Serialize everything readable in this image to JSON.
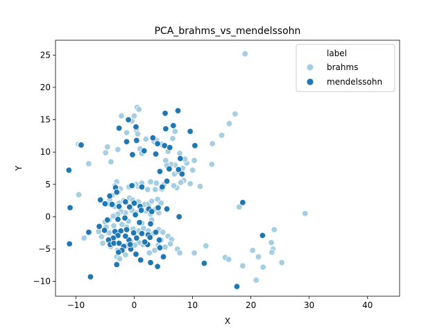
{
  "chart_data": {
    "type": "scatter",
    "title": "PCA_brahms_vs_mendelssohn",
    "xlabel": "X",
    "ylabel": "Y",
    "xlim": [
      -13.5,
      45.5
    ],
    "ylim": [
      -12.3,
      27.3
    ],
    "xticks": [
      -10,
      0,
      10,
      20,
      30,
      40
    ],
    "yticks": [
      -10,
      -5,
      0,
      5,
      10,
      15,
      20,
      25
    ],
    "grid": false,
    "legend": {
      "title": "label",
      "placement": "top-right"
    },
    "series": [
      {
        "name": "brahms",
        "color": "#a6cee3",
        "points": [
          [
            19.0,
            25.2
          ],
          [
            17.3,
            15.9
          ],
          [
            16.3,
            14.4
          ],
          [
            15.0,
            12.6
          ],
          [
            13.4,
            11.3
          ],
          [
            13.3,
            8.1
          ],
          [
            29.3,
            0.5
          ],
          [
            18.0,
            1.5
          ],
          [
            24.0,
            -2.0
          ],
          [
            23.5,
            -4.0
          ],
          [
            23.8,
            -5.0
          ],
          [
            23.6,
            -5.5
          ],
          [
            25.3,
            -7.1
          ],
          [
            21.3,
            -6.2
          ],
          [
            20.3,
            -5.2
          ],
          [
            22.1,
            -7.8
          ],
          [
            18.6,
            -7.6
          ],
          [
            20.9,
            -9.8
          ],
          [
            15.6,
            -6.3
          ],
          [
            16.2,
            -6.6
          ],
          [
            12.3,
            -4.5
          ],
          [
            10.3,
            -5.6
          ],
          [
            11.3,
            4.7
          ],
          [
            10.3,
            8.7
          ],
          [
            10.0,
            7.2
          ],
          [
            9.6,
            5.1
          ],
          [
            9.0,
            8.3
          ],
          [
            8.7,
            8.9
          ],
          [
            7.8,
            9.8
          ],
          [
            7.0,
            13.2
          ],
          [
            7.0,
            8.0
          ],
          [
            6.3,
            8.1
          ],
          [
            5.4,
            8.7
          ],
          [
            5.6,
            7.9
          ],
          [
            6.9,
            6.6
          ],
          [
            7.5,
            7.0
          ],
          [
            8.3,
            7.5
          ],
          [
            7.3,
            4.5
          ],
          [
            6.8,
            4.8
          ],
          [
            8.5,
            5.6
          ],
          [
            8.0,
            5.3
          ],
          [
            5.1,
            5.0
          ],
          [
            4.7,
            4.3
          ],
          [
            3.8,
            5.2
          ],
          [
            3.6,
            4.2
          ],
          [
            2.8,
            5.4
          ],
          [
            2.3,
            4.2
          ],
          [
            1.3,
            5.2
          ],
          [
            0.6,
            4.7
          ],
          [
            0.3,
            5.0
          ],
          [
            -0.2,
            4.9
          ],
          [
            -0.9,
            4.6
          ],
          [
            -2.4,
            4.3
          ],
          [
            -3.0,
            5.4
          ],
          [
            -3.3,
            4.8
          ],
          [
            -3.1,
            4.3
          ],
          [
            -2.8,
            3.8
          ],
          [
            -3.8,
            3.3
          ],
          [
            -4.2,
            2.6
          ],
          [
            -4.6,
            2.0
          ],
          [
            -3.3,
            1.6
          ],
          [
            -2.6,
            2.1
          ],
          [
            -1.8,
            2.5
          ],
          [
            -0.8,
            2.9
          ],
          [
            -0.3,
            2.6
          ],
          [
            0.7,
            2.3
          ],
          [
            1.8,
            1.9
          ],
          [
            2.5,
            2.0
          ],
          [
            3.0,
            2.4
          ],
          [
            4.0,
            2.7
          ],
          [
            4.6,
            2.1
          ],
          [
            4.2,
            0.6
          ],
          [
            3.7,
            1.2
          ],
          [
            2.8,
            0.4
          ],
          [
            2.0,
            0.9
          ],
          [
            1.3,
            1.1
          ],
          [
            0.3,
            0.6
          ],
          [
            -0.4,
            1.0
          ],
          [
            -1.5,
            0.6
          ],
          [
            -2.3,
            0.8
          ],
          [
            -2.8,
            0.4
          ],
          [
            -3.6,
            0.1
          ],
          [
            -4.3,
            -0.5
          ],
          [
            -5.0,
            -0.8
          ],
          [
            -4.8,
            -1.6
          ],
          [
            -3.5,
            -1.4
          ],
          [
            -2.1,
            -1.2
          ],
          [
            -1.3,
            -1.6
          ],
          [
            -0.2,
            -1.9
          ],
          [
            0.8,
            -2.2
          ],
          [
            1.6,
            -1.8
          ],
          [
            2.4,
            -2.2
          ],
          [
            3.3,
            -2.6
          ],
          [
            4.2,
            -2.0
          ],
          [
            4.9,
            -2.4
          ],
          [
            5.8,
            -3.0
          ],
          [
            6.4,
            -3.5
          ],
          [
            6.2,
            -4.2
          ],
          [
            7.4,
            -5.0
          ],
          [
            7.8,
            -5.6
          ],
          [
            5.3,
            -4.7
          ],
          [
            4.6,
            -3.6
          ],
          [
            4.1,
            -4.4
          ],
          [
            3.5,
            -5.2
          ],
          [
            2.6,
            -5.6
          ],
          [
            1.5,
            -4.3
          ],
          [
            0.8,
            -4.0
          ],
          [
            0.1,
            -4.4
          ],
          [
            -0.6,
            -3.8
          ],
          [
            -1.3,
            -4.5
          ],
          [
            -2.0,
            -5.0
          ],
          [
            -2.9,
            -5.2
          ],
          [
            -2.8,
            -5.5
          ],
          [
            -3.0,
            -6.2
          ],
          [
            -2.5,
            -6.5
          ],
          [
            -1.5,
            -5.9
          ],
          [
            -4.0,
            -4.6
          ],
          [
            -5.4,
            -4.1
          ],
          [
            -5.6,
            -3.1
          ],
          [
            -4.3,
            -2.5
          ],
          [
            -6.1,
            -2.3
          ],
          [
            -8.6,
            -3.3
          ],
          [
            -9.5,
            3.4
          ],
          [
            -9.6,
            11.2
          ],
          [
            -9.3,
            11.1
          ],
          [
            -7.8,
            8.2
          ],
          [
            -4.9,
            9.9
          ],
          [
            -4.6,
            10.8
          ],
          [
            -4.0,
            8.5
          ],
          [
            -2.8,
            10.4
          ],
          [
            -2.2,
            15.6
          ],
          [
            -1.3,
            13.0
          ],
          [
            -0.4,
            14.8
          ],
          [
            0.0,
            15.6
          ],
          [
            0.5,
            16.9
          ],
          [
            0.8,
            16.6
          ],
          [
            0.4,
            13.3
          ],
          [
            0.6,
            12.8
          ],
          [
            1.0,
            10.5
          ],
          [
            1.3,
            9.8
          ],
          [
            1.7,
            10.2
          ],
          [
            2.0,
            12.0
          ],
          [
            3.4,
            11.6
          ],
          [
            3.8,
            11.8
          ],
          [
            4.7,
            11.2
          ],
          [
            6.6,
            12.1
          ],
          [
            5.8,
            10.1
          ],
          [
            1.3,
            -1.0
          ],
          [
            -1.0,
            -0.7
          ],
          [
            3.0,
            -0.5
          ]
        ]
      },
      {
        "name": "mendelssohn",
        "color": "#1f78b4",
        "points": [
          [
            -11.2,
            7.2
          ],
          [
            -11.0,
            1.4
          ],
          [
            -11.1,
            -4.2
          ],
          [
            -7.8,
            -2.4
          ],
          [
            -7.5,
            -9.3
          ],
          [
            -9.1,
            11.1
          ],
          [
            -2.6,
            13.7
          ],
          [
            -1.3,
            11.6
          ],
          [
            -1.0,
            15.0
          ],
          [
            0.3,
            13.9
          ],
          [
            0.4,
            11.8
          ],
          [
            -0.3,
            9.6
          ],
          [
            1.7,
            10.2
          ],
          [
            3.2,
            12.2
          ],
          [
            3.7,
            9.7
          ],
          [
            4.0,
            11.3
          ],
          [
            5.2,
            11.0
          ],
          [
            5.4,
            13.6
          ],
          [
            5.3,
            16.0
          ],
          [
            7.5,
            16.4
          ],
          [
            6.7,
            14.1
          ],
          [
            6.1,
            10.7
          ],
          [
            9.6,
            13.2
          ],
          [
            10.4,
            11.0
          ],
          [
            7.9,
            9.0
          ],
          [
            7.6,
            7.3
          ],
          [
            8.2,
            6.6
          ],
          [
            6.0,
            7.4
          ],
          [
            4.4,
            7.0
          ],
          [
            5.6,
            5.5
          ],
          [
            4.8,
            4.6
          ],
          [
            1.3,
            4.6
          ],
          [
            -0.4,
            4.8
          ],
          [
            -3.2,
            4.5
          ],
          [
            -3.0,
            3.8
          ],
          [
            -4.2,
            3.2
          ],
          [
            -5.8,
            2.6
          ],
          [
            -5.0,
            2.0
          ],
          [
            -3.8,
            1.9
          ],
          [
            -2.6,
            1.6
          ],
          [
            -1.5,
            2.3
          ],
          [
            -0.8,
            1.5
          ],
          [
            0.0,
            2.1
          ],
          [
            1.0,
            1.6
          ],
          [
            2.5,
            1.2
          ],
          [
            3.0,
            0.8
          ],
          [
            4.1,
            1.4
          ],
          [
            -1.6,
            -0.2
          ],
          [
            0.2,
            0.3
          ],
          [
            1.2,
            1.0
          ],
          [
            -2.8,
            -0.4
          ],
          [
            -4.6,
            -0.5
          ],
          [
            -6.0,
            -1.5
          ],
          [
            -5.1,
            -2.1
          ],
          [
            -3.3,
            -2.3
          ],
          [
            -2.3,
            -2.2
          ],
          [
            -1.3,
            -2.0
          ],
          [
            -0.1,
            -2.5
          ],
          [
            1.3,
            -2.6
          ],
          [
            2.4,
            -2.8
          ],
          [
            3.7,
            -2.4
          ],
          [
            2.7,
            -3.2
          ],
          [
            2.3,
            -4.3
          ],
          [
            1.8,
            -3.9
          ],
          [
            0.4,
            -3.3
          ],
          [
            -0.9,
            -3.6
          ],
          [
            -1.5,
            -3.0
          ],
          [
            -2.8,
            -2.9
          ],
          [
            -3.6,
            -3.3
          ],
          [
            -4.4,
            -3.6
          ],
          [
            -4.1,
            -4.3
          ],
          [
            -3.5,
            -4.1
          ],
          [
            -2.6,
            -4.1
          ],
          [
            -1.8,
            -4.6
          ],
          [
            -0.6,
            -5.0
          ],
          [
            0.3,
            -5.8
          ],
          [
            1.1,
            -6.7
          ],
          [
            2.8,
            -7.1
          ],
          [
            4.0,
            -7.7
          ],
          [
            5.0,
            -6.2
          ],
          [
            4.4,
            -4.8
          ],
          [
            4.3,
            -3.6
          ],
          [
            -0.7,
            -4.3
          ],
          [
            -2.1,
            -5.2
          ],
          [
            -2.7,
            -5.5
          ],
          [
            -3.0,
            -7.4
          ],
          [
            12.0,
            -7.2
          ],
          [
            17.6,
            -10.8
          ],
          [
            18.6,
            2.2
          ],
          [
            22.0,
            -2.9
          ],
          [
            7.7,
            0.0
          ],
          [
            5.6,
            1.2
          ],
          [
            2.8,
            -1.1
          ],
          [
            0.9,
            -0.9
          ]
        ]
      }
    ]
  }
}
